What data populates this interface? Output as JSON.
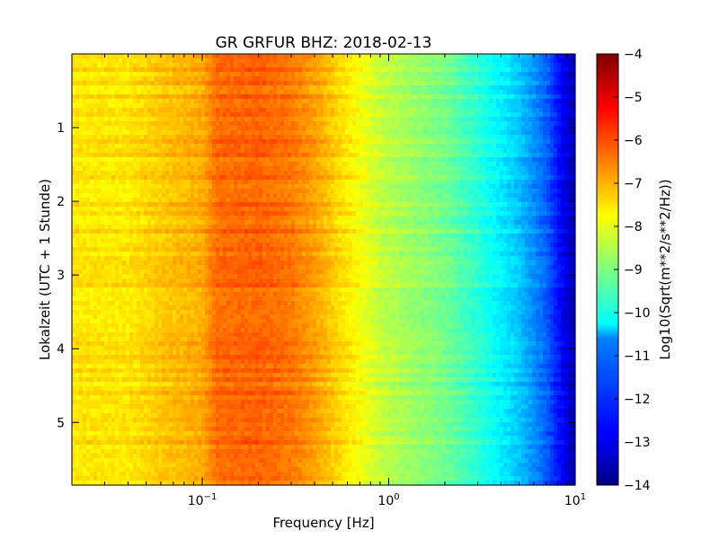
{
  "chart_data": {
    "type": "heatmap",
    "title": "GR GRFUR BHZ: 2018-02-13",
    "xlabel": "Frequency [Hz]",
    "ylabel": "Lokalzeit (UTC + 1 Stunde)",
    "xscale": "log",
    "xlim": [
      0.02,
      10
    ],
    "ylim": [
      5.85,
      0
    ],
    "x_ticks": [
      {
        "value": 0.1,
        "base": "10",
        "exp": "−1"
      },
      {
        "value": 1,
        "base": "10",
        "exp": "0"
      },
      {
        "value": 10,
        "base": "10",
        "exp": "1"
      }
    ],
    "y_ticks": [
      1,
      2,
      3,
      4,
      5
    ],
    "colorbar": {
      "label": "Log10(Sqrt(m**2/s**2/Hz))",
      "colormap": "jet",
      "range": [
        -14,
        -4
      ],
      "ticks": [
        "−4",
        "−5",
        "−6",
        "−7",
        "−8",
        "−9",
        "−10",
        "−11",
        "−12",
        "−13",
        "−14"
      ]
    },
    "spectrum_profile": {
      "frequency_hz": [
        0.02,
        0.04,
        0.06,
        0.1,
        0.12,
        0.2,
        0.3,
        0.4,
        0.55,
        0.7,
        0.9,
        1.2,
        2,
        3,
        5,
        7,
        10
      ],
      "log10_amplitude": [
        -7.5,
        -7.5,
        -7.2,
        -6.9,
        -6.3,
        -6.2,
        -6.4,
        -6.8,
        -7.4,
        -7.8,
        -8.3,
        -8.6,
        -9.1,
        -9.8,
        -10.8,
        -11.8,
        -13.6
      ]
    }
  }
}
